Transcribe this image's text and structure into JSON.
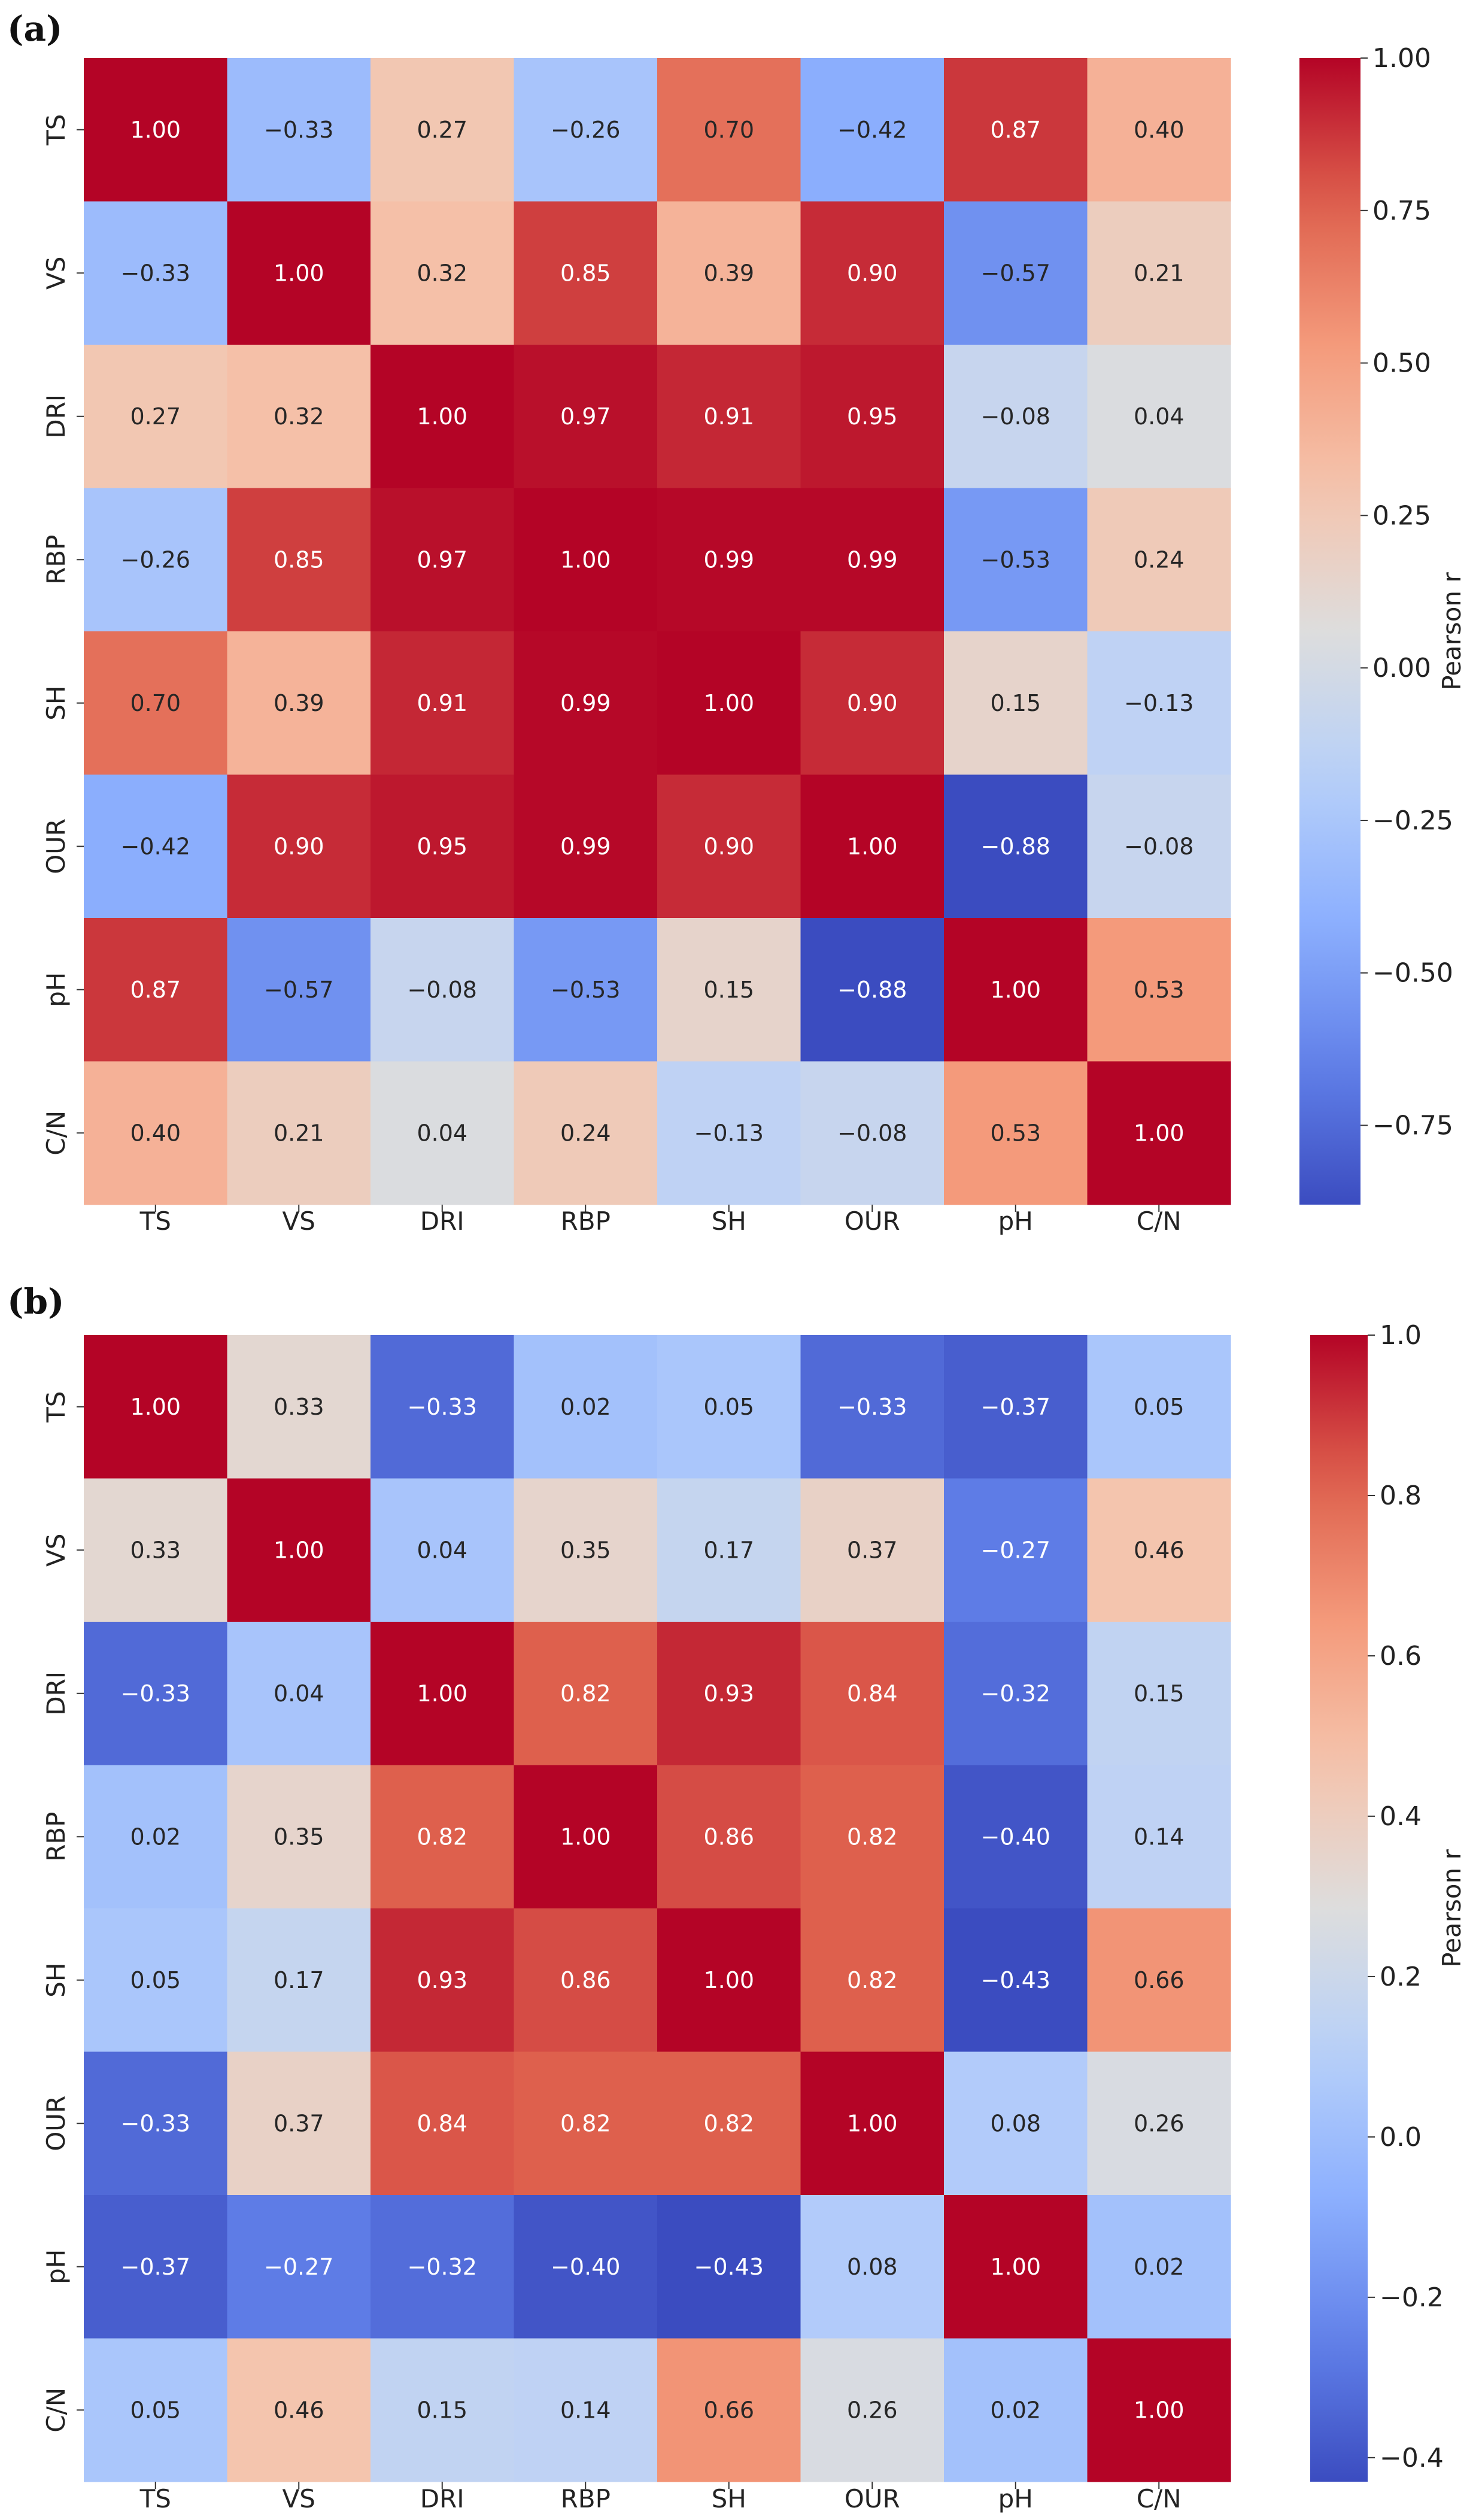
{
  "chart_data": [
    {
      "type": "heatmap",
      "panel_label": "(a)",
      "categories": [
        "TS",
        "VS",
        "DRI",
        "RBP",
        "SH",
        "OUR",
        "pH",
        "C/N"
      ],
      "values": [
        [
          1.0,
          -0.33,
          0.27,
          -0.26,
          0.7,
          -0.42,
          0.87,
          0.4
        ],
        [
          -0.33,
          1.0,
          0.32,
          0.85,
          0.39,
          0.9,
          -0.57,
          0.21
        ],
        [
          0.27,
          0.32,
          1.0,
          0.97,
          0.91,
          0.95,
          -0.08,
          0.04
        ],
        [
          -0.26,
          0.85,
          0.97,
          1.0,
          0.99,
          0.99,
          -0.53,
          0.24
        ],
        [
          0.7,
          0.39,
          0.91,
          0.99,
          1.0,
          0.9,
          0.15,
          -0.13
        ],
        [
          -0.42,
          0.9,
          0.95,
          0.99,
          0.9,
          1.0,
          -0.88,
          -0.08
        ],
        [
          0.87,
          -0.57,
          -0.08,
          -0.53,
          0.15,
          -0.88,
          1.0,
          0.53
        ],
        [
          0.4,
          0.21,
          0.04,
          0.24,
          -0.13,
          -0.08,
          0.53,
          1.0
        ]
      ],
      "cell_labels": [
        [
          "1.00",
          "−0.33",
          "0.27",
          "−0.26",
          "0.70",
          "−0.42",
          "0.87",
          "0.40"
        ],
        [
          "−0.33",
          "1.00",
          "0.32",
          "0.85",
          "0.39",
          "0.90",
          "−0.57",
          "0.21"
        ],
        [
          "0.27",
          "0.32",
          "1.00",
          "0.97",
          "0.91",
          "0.95",
          "−0.08",
          "0.04"
        ],
        [
          "−0.26",
          "0.85",
          "0.97",
          "1.00",
          "0.99",
          "0.99",
          "−0.53",
          "0.24"
        ],
        [
          "0.70",
          "0.39",
          "0.91",
          "0.99",
          "1.00",
          "0.90",
          "0.15",
          "−0.13"
        ],
        [
          "−0.42",
          "0.90",
          "0.95",
          "0.99",
          "0.90",
          "1.00",
          "−0.88",
          "−0.08"
        ],
        [
          "0.87",
          "−0.57",
          "−0.08",
          "−0.53",
          "0.15",
          "−0.88",
          "1.00",
          "0.53"
        ],
        [
          "0.40",
          "0.21",
          "0.04",
          "0.24",
          "−0.13",
          "−0.08",
          "0.53",
          "1.00"
        ]
      ],
      "vmin": -0.88,
      "vmax": 1.0,
      "colorbar_label": "Pearson r",
      "colorbar_ticks": [
        1.0,
        0.75,
        0.5,
        0.25,
        0.0,
        -0.25,
        -0.5,
        -0.75
      ],
      "colorbar_tick_labels": [
        "1.00",
        "0.75",
        "0.50",
        "0.25",
        "0.00",
        "−0.25",
        "−0.50",
        "−0.75"
      ],
      "colormap": "coolwarm"
    },
    {
      "type": "heatmap",
      "panel_label": "(b)",
      "categories": [
        "TS",
        "VS",
        "DRI",
        "RBP",
        "SH",
        "OUR",
        "pH",
        "C/N"
      ],
      "values": [
        [
          1.0,
          0.33,
          -0.33,
          0.02,
          0.05,
          -0.33,
          -0.37,
          0.05
        ],
        [
          0.33,
          1.0,
          0.04,
          0.35,
          0.17,
          0.37,
          -0.27,
          0.46
        ],
        [
          -0.33,
          0.04,
          1.0,
          0.82,
          0.93,
          0.84,
          -0.32,
          0.15
        ],
        [
          0.02,
          0.35,
          0.82,
          1.0,
          0.86,
          0.82,
          -0.4,
          0.14
        ],
        [
          0.05,
          0.17,
          0.93,
          0.86,
          1.0,
          0.82,
          -0.43,
          0.66
        ],
        [
          -0.33,
          0.37,
          0.84,
          0.82,
          0.82,
          1.0,
          0.08,
          0.26
        ],
        [
          -0.37,
          -0.27,
          -0.32,
          -0.4,
          -0.43,
          0.08,
          1.0,
          0.02
        ],
        [
          0.05,
          0.46,
          0.15,
          0.14,
          0.66,
          0.26,
          0.02,
          1.0
        ]
      ],
      "cell_labels": [
        [
          "1.00",
          "0.33",
          "−0.33",
          "0.02",
          "0.05",
          "−0.33",
          "−0.37",
          "0.05"
        ],
        [
          "0.33",
          "1.00",
          "0.04",
          "0.35",
          "0.17",
          "0.37",
          "−0.27",
          "0.46"
        ],
        [
          "−0.33",
          "0.04",
          "1.00",
          "0.82",
          "0.93",
          "0.84",
          "−0.32",
          "0.15"
        ],
        [
          "0.02",
          "0.35",
          "0.82",
          "1.00",
          "0.86",
          "0.82",
          "−0.40",
          "0.14"
        ],
        [
          "0.05",
          "0.17",
          "0.93",
          "0.86",
          "1.00",
          "0.82",
          "−0.43",
          "0.66"
        ],
        [
          "−0.33",
          "0.37",
          "0.84",
          "0.82",
          "0.82",
          "1.00",
          "0.08",
          "0.26"
        ],
        [
          "−0.37",
          "−0.27",
          "−0.32",
          "−0.40",
          "−0.43",
          "0.08",
          "1.00",
          "0.02"
        ],
        [
          "0.05",
          "0.46",
          "0.15",
          "0.14",
          "0.66",
          "0.26",
          "0.02",
          "1.00"
        ]
      ],
      "vmin": -0.43,
      "vmax": 1.0,
      "colorbar_label": "Pearson r",
      "colorbar_ticks": [
        1.0,
        0.8,
        0.6,
        0.4,
        0.2,
        0.0,
        -0.2,
        -0.4
      ],
      "colorbar_tick_labels": [
        "1.0",
        "0.8",
        "0.6",
        "0.4",
        "0.2",
        "0.0",
        "−0.2",
        "−0.4"
      ],
      "colormap": "coolwarm"
    }
  ]
}
